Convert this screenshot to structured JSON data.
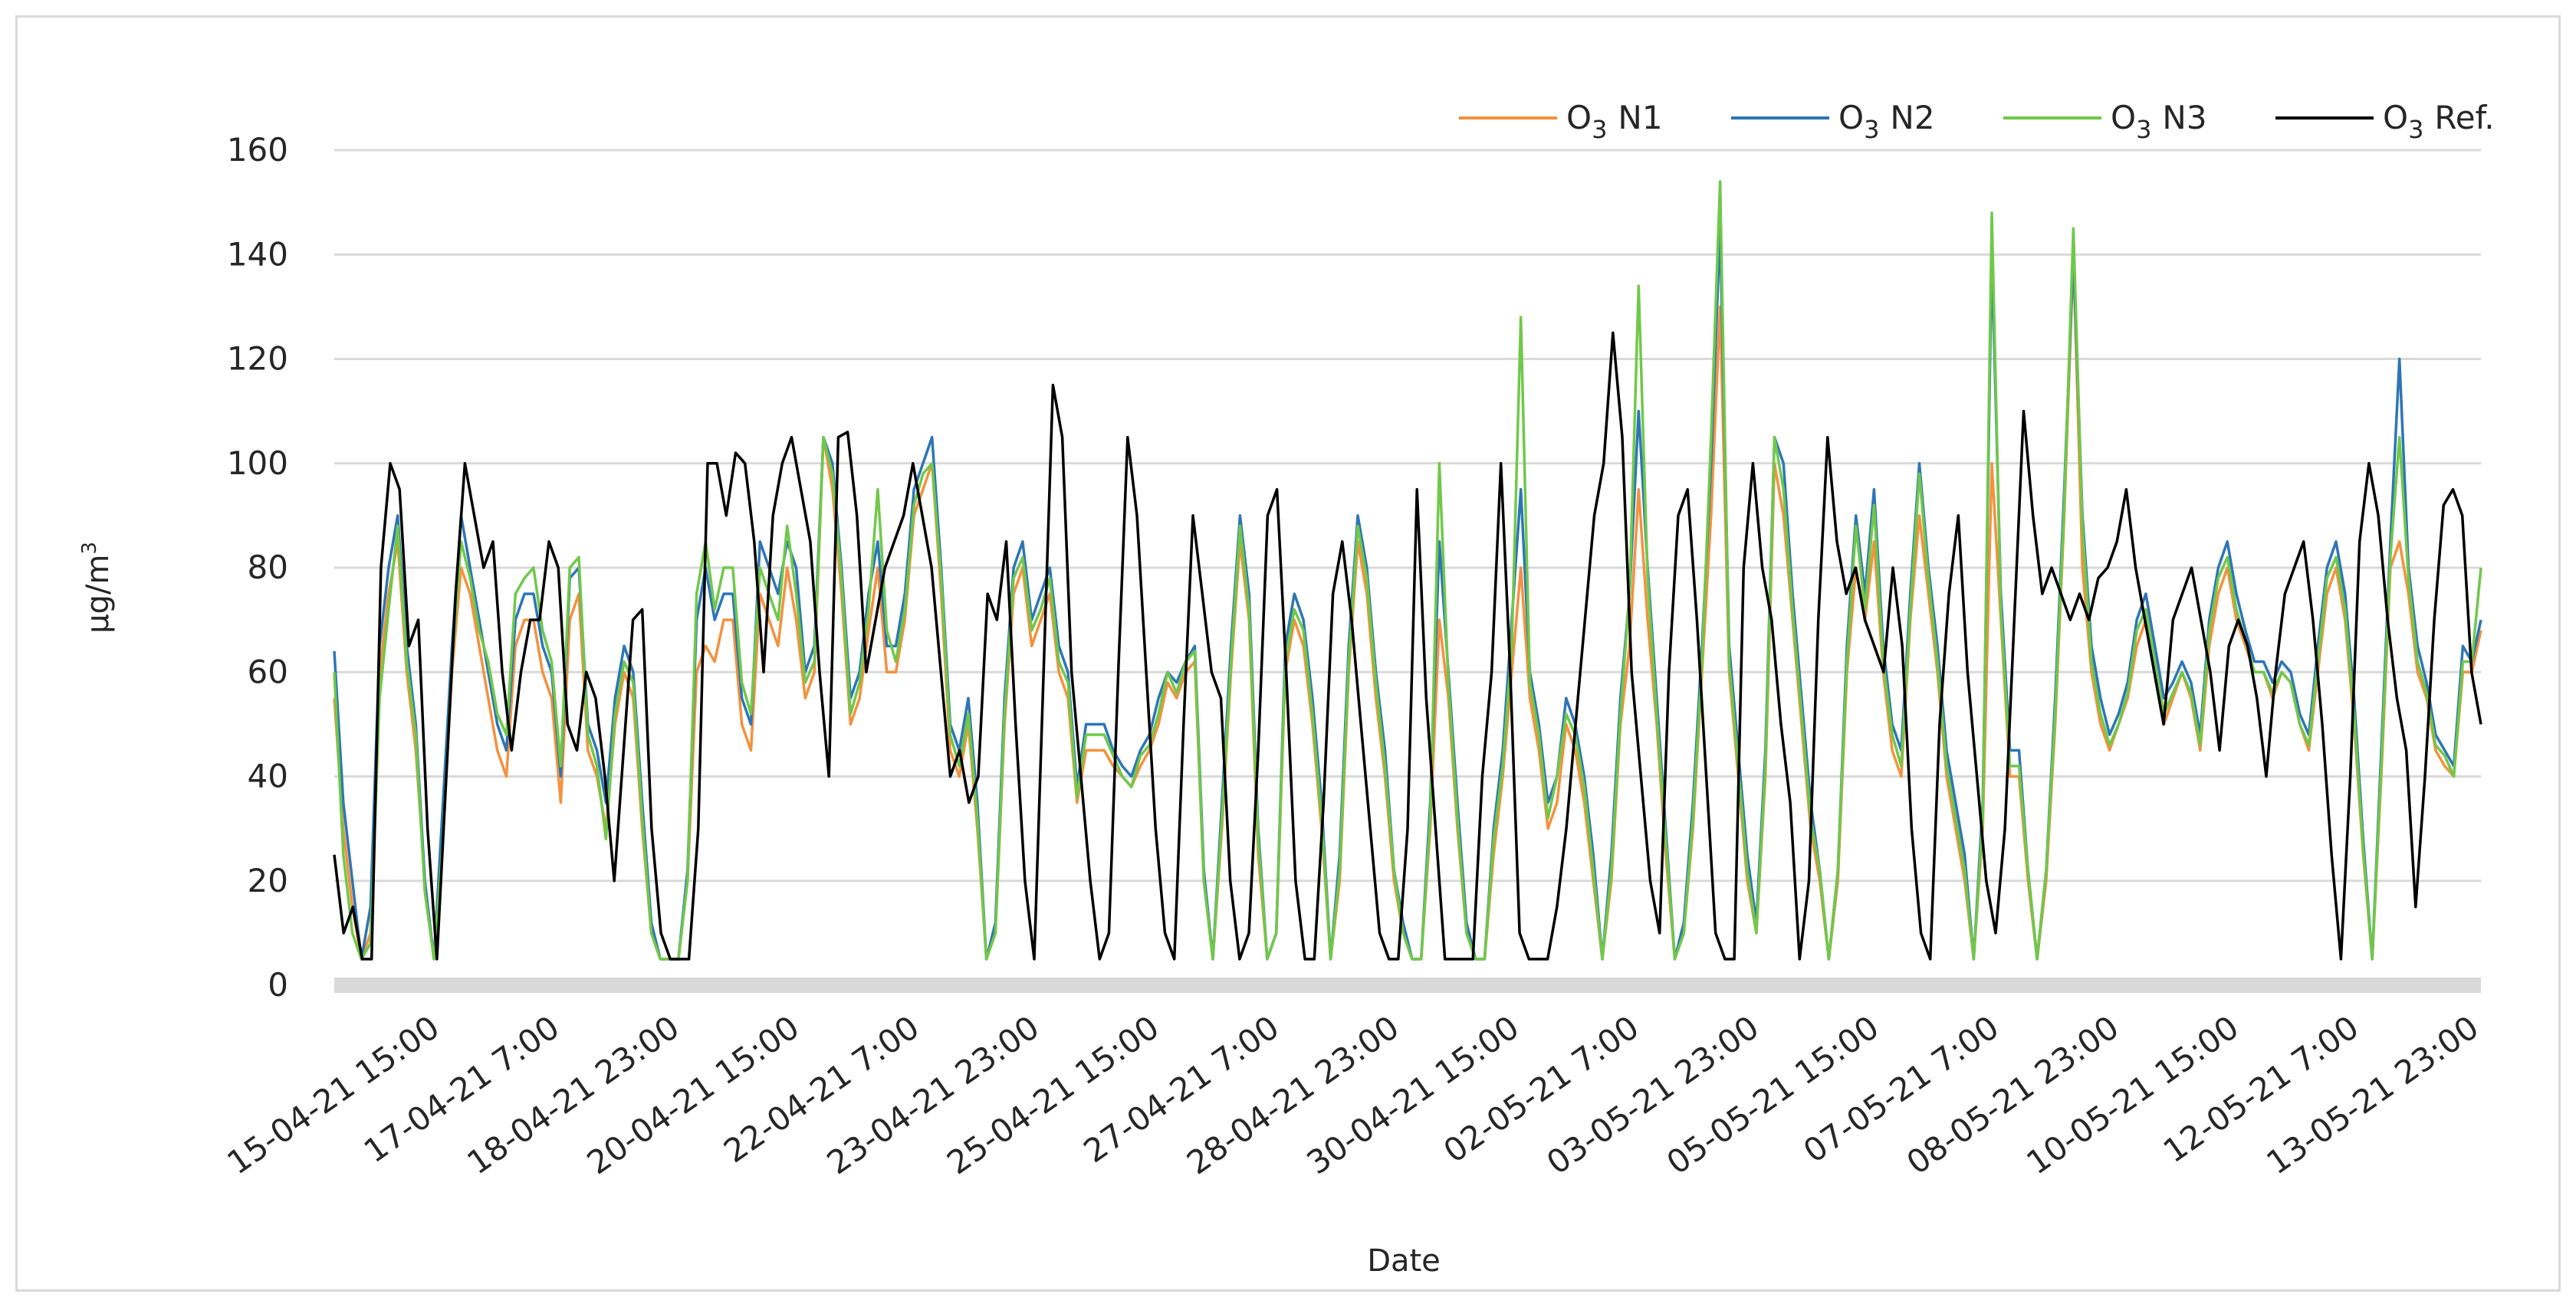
{
  "chart_data": {
    "type": "line",
    "title": "",
    "xlabel": "Date",
    "ylabel": "µg/m",
    "ylabel_superscript": "3",
    "ylim": [
      0,
      160
    ],
    "yticks": [
      0,
      20,
      40,
      60,
      80,
      100,
      120,
      140,
      160
    ],
    "grid": true,
    "legend_position": "top-right",
    "xticks": [
      "15-04-21 15:00",
      "17-04-21 7:00",
      "18-04-21 23:00",
      "20-04-21 15:00",
      "22-04-21 7:00",
      "23-04-21 23:00",
      "25-04-21 15:00",
      "27-04-21 7:00",
      "28-04-21 23:00",
      "30-04-21 15:00",
      "02-05-21 7:00",
      "03-05-21 23:00",
      "05-05-21 15:00",
      "07-05-21 7:00",
      "08-05-21 23:00",
      "10-05-21 15:00",
      "12-05-21 7:00",
      "13-05-21 23:00"
    ],
    "series": [
      {
        "name": "O",
        "subscript": "3",
        "suffix": "N1",
        "color": "#f4913e",
        "values": [
          55,
          30,
          15,
          5,
          10,
          60,
          75,
          85,
          60,
          45,
          20,
          5,
          30,
          60,
          80,
          75,
          65,
          55,
          45,
          40,
          65,
          70,
          70,
          60,
          55,
          35,
          70,
          75,
          45,
          40,
          30,
          50,
          60,
          55,
          30,
          10,
          5,
          5,
          5,
          20,
          60,
          65,
          62,
          70,
          70,
          50,
          45,
          75,
          70,
          65,
          80,
          70,
          55,
          60,
          105,
          95,
          75,
          50,
          55,
          68,
          80,
          60,
          60,
          70,
          90,
          95,
          100,
          75,
          45,
          40,
          50,
          30,
          5,
          10,
          50,
          75,
          80,
          65,
          70,
          75,
          60,
          55,
          35,
          45,
          45,
          45,
          42,
          40,
          38,
          42,
          45,
          50,
          58,
          55,
          60,
          62,
          20,
          5,
          30,
          60,
          85,
          70,
          25,
          5,
          10,
          60,
          70,
          65,
          50,
          30,
          5,
          20,
          60,
          85,
          75,
          55,
          40,
          20,
          10,
          5,
          5,
          30,
          70,
          55,
          30,
          10,
          5,
          5,
          25,
          40,
          60,
          80,
          55,
          45,
          30,
          35,
          50,
          45,
          35,
          20,
          5,
          20,
          50,
          65,
          95,
          70,
          50,
          25,
          5,
          10,
          30,
          60,
          90,
          130,
          60,
          40,
          20,
          10,
          40,
          100,
          90,
          70,
          50,
          30,
          20,
          5,
          20,
          60,
          80,
          70,
          85,
          60,
          45,
          40,
          70,
          90,
          75,
          60,
          40,
          30,
          20,
          5,
          30,
          100,
          70,
          40,
          40,
          20,
          5,
          20,
          50,
          90,
          140,
          80,
          60,
          50,
          45,
          50,
          55,
          65,
          70,
          60,
          50,
          55,
          60,
          55,
          45,
          65,
          75,
          80,
          70,
          65,
          60,
          60,
          55,
          60,
          58,
          50,
          45,
          60,
          75,
          80,
          70,
          50,
          25,
          5,
          40,
          80,
          85,
          75,
          60,
          55,
          45,
          42,
          40,
          60,
          60,
          68
        ]
      },
      {
        "name": "O",
        "subscript": "3",
        "suffix": "N2",
        "color": "#2e75b6",
        "values": [
          64,
          35,
          20,
          5,
          15,
          65,
          80,
          90,
          65,
          50,
          20,
          5,
          35,
          65,
          90,
          80,
          70,
          60,
          50,
          45,
          70,
          75,
          75,
          65,
          60,
          40,
          78,
          80,
          50,
          45,
          35,
          55,
          65,
          60,
          35,
          12,
          5,
          5,
          5,
          22,
          70,
          80,
          70,
          75,
          75,
          55,
          50,
          85,
          80,
          75,
          85,
          80,
          60,
          65,
          105,
          100,
          80,
          55,
          60,
          75,
          85,
          65,
          65,
          75,
          95,
          100,
          105,
          80,
          50,
          45,
          55,
          35,
          5,
          12,
          55,
          80,
          85,
          70,
          75,
          80,
          65,
          60,
          38,
          50,
          50,
          50,
          45,
          42,
          40,
          45,
          48,
          55,
          60,
          58,
          62,
          65,
          22,
          5,
          35,
          65,
          90,
          75,
          30,
          5,
          10,
          65,
          75,
          70,
          55,
          35,
          5,
          25,
          65,
          90,
          80,
          60,
          45,
          22,
          12,
          5,
          5,
          35,
          85,
          60,
          35,
          12,
          5,
          5,
          30,
          45,
          70,
          95,
          60,
          50,
          35,
          40,
          55,
          50,
          40,
          25,
          5,
          25,
          55,
          75,
          110,
          80,
          55,
          30,
          5,
          12,
          35,
          65,
          100,
          145,
          65,
          45,
          25,
          12,
          45,
          105,
          100,
          75,
          55,
          35,
          22,
          5,
          22,
          65,
          90,
          75,
          95,
          65,
          50,
          45,
          75,
          100,
          80,
          65,
          45,
          35,
          25,
          5,
          35,
          140,
          75,
          45,
          45,
          22,
          5,
          22,
          55,
          95,
          140,
          90,
          65,
          55,
          48,
          52,
          58,
          70,
          75,
          65,
          55,
          58,
          62,
          58,
          48,
          70,
          80,
          85,
          75,
          68,
          62,
          62,
          58,
          62,
          60,
          52,
          48,
          65,
          80,
          85,
          75,
          55,
          28,
          5,
          45,
          85,
          120,
          80,
          65,
          58,
          48,
          45,
          42,
          65,
          62,
          70
        ]
      },
      {
        "name": "O",
        "subscript": "3",
        "suffix": "N3",
        "color": "#70c84a",
        "values": [
          60,
          25,
          10,
          5,
          8,
          55,
          72,
          88,
          62,
          48,
          18,
          5,
          28,
          62,
          85,
          78,
          68,
          62,
          52,
          48,
          75,
          78,
          80,
          68,
          62,
          42,
          80,
          82,
          48,
          42,
          28,
          52,
          62,
          58,
          32,
          10,
          5,
          5,
          5,
          20,
          75,
          85,
          72,
          80,
          80,
          58,
          52,
          80,
          75,
          70,
          88,
          75,
          58,
          62,
          105,
          98,
          78,
          52,
          58,
          72,
          95,
          68,
          62,
          72,
          92,
          98,
          100,
          78,
          48,
          42,
          52,
          32,
          5,
          10,
          52,
          78,
          82,
          68,
          72,
          78,
          62,
          58,
          36,
          48,
          48,
          48,
          44,
          40,
          38,
          44,
          46,
          52,
          60,
          56,
          62,
          64,
          20,
          5,
          32,
          62,
          88,
          72,
          28,
          5,
          10,
          62,
          72,
          68,
          52,
          32,
          5,
          22,
          62,
          88,
          78,
          58,
          42,
          22,
          10,
          5,
          5,
          32,
          100,
          58,
          32,
          10,
          5,
          5,
          28,
          42,
          65,
          128,
          58,
          48,
          32,
          40,
          52,
          48,
          38,
          22,
          5,
          22,
          52,
          75,
          134,
          78,
          52,
          28,
          5,
          10,
          32,
          62,
          105,
          154,
          62,
          42,
          22,
          10,
          42,
          105,
          95,
          72,
          52,
          32,
          22,
          5,
          22,
          62,
          88,
          72,
          92,
          62,
          48,
          42,
          72,
          98,
          78,
          62,
          42,
          32,
          22,
          5,
          32,
          148,
          72,
          42,
          42,
          22,
          5,
          22,
          52,
          92,
          145,
          88,
          62,
          52,
          46,
          50,
          56,
          68,
          72,
          62,
          52,
          56,
          60,
          56,
          46,
          68,
          78,
          82,
          72,
          66,
          60,
          60,
          56,
          60,
          58,
          50,
          46,
          62,
          78,
          82,
          72,
          52,
          26,
          5,
          42,
          82,
          105,
          78,
          62,
          56,
          46,
          44,
          40,
          62,
          62,
          80
        ]
      },
      {
        "name": "O",
        "subscript": "3",
        "suffix": "Ref.",
        "color": "#000000",
        "values": [
          25,
          10,
          15,
          5,
          5,
          80,
          100,
          95,
          65,
          70,
          30,
          5,
          40,
          75,
          100,
          90,
          80,
          85,
          60,
          45,
          60,
          70,
          70,
          85,
          80,
          50,
          45,
          60,
          55,
          40,
          20,
          45,
          70,
          72,
          30,
          10,
          5,
          5,
          5,
          30,
          100,
          100,
          90,
          102,
          100,
          85,
          60,
          90,
          100,
          105,
          95,
          85,
          60,
          40,
          105,
          106,
          90,
          60,
          70,
          80,
          85,
          90,
          100,
          90,
          80,
          60,
          40,
          45,
          35,
          40,
          75,
          70,
          85,
          50,
          20,
          5,
          60,
          115,
          105,
          60,
          40,
          20,
          5,
          10,
          60,
          105,
          90,
          60,
          30,
          10,
          5,
          50,
          90,
          75,
          60,
          55,
          20,
          5,
          10,
          45,
          90,
          95,
          60,
          20,
          5,
          5,
          35,
          75,
          85,
          70,
          50,
          30,
          10,
          5,
          5,
          30,
          95,
          55,
          30,
          5,
          5,
          5,
          5,
          40,
          60,
          100,
          60,
          10,
          5,
          5,
          5,
          15,
          30,
          50,
          70,
          90,
          100,
          125,
          105,
          60,
          40,
          20,
          10,
          60,
          90,
          95,
          70,
          40,
          10,
          5,
          5,
          80,
          100,
          80,
          70,
          50,
          35,
          5,
          20,
          70,
          105,
          85,
          75,
          80,
          70,
          65,
          60,
          80,
          65,
          30,
          10,
          5,
          50,
          75,
          90,
          60,
          40,
          20,
          10,
          30,
          70,
          110,
          90,
          75,
          80,
          75,
          70,
          75,
          70,
          78,
          80,
          85,
          95,
          80,
          70,
          60,
          50,
          70,
          75,
          80,
          70,
          60,
          45,
          65,
          70,
          65,
          55,
          40,
          60,
          75,
          80,
          85,
          70,
          50,
          25,
          5,
          40,
          85,
          100,
          90,
          70,
          55,
          45,
          15,
          40,
          70,
          92,
          95,
          90,
          60,
          50
        ]
      }
    ]
  }
}
